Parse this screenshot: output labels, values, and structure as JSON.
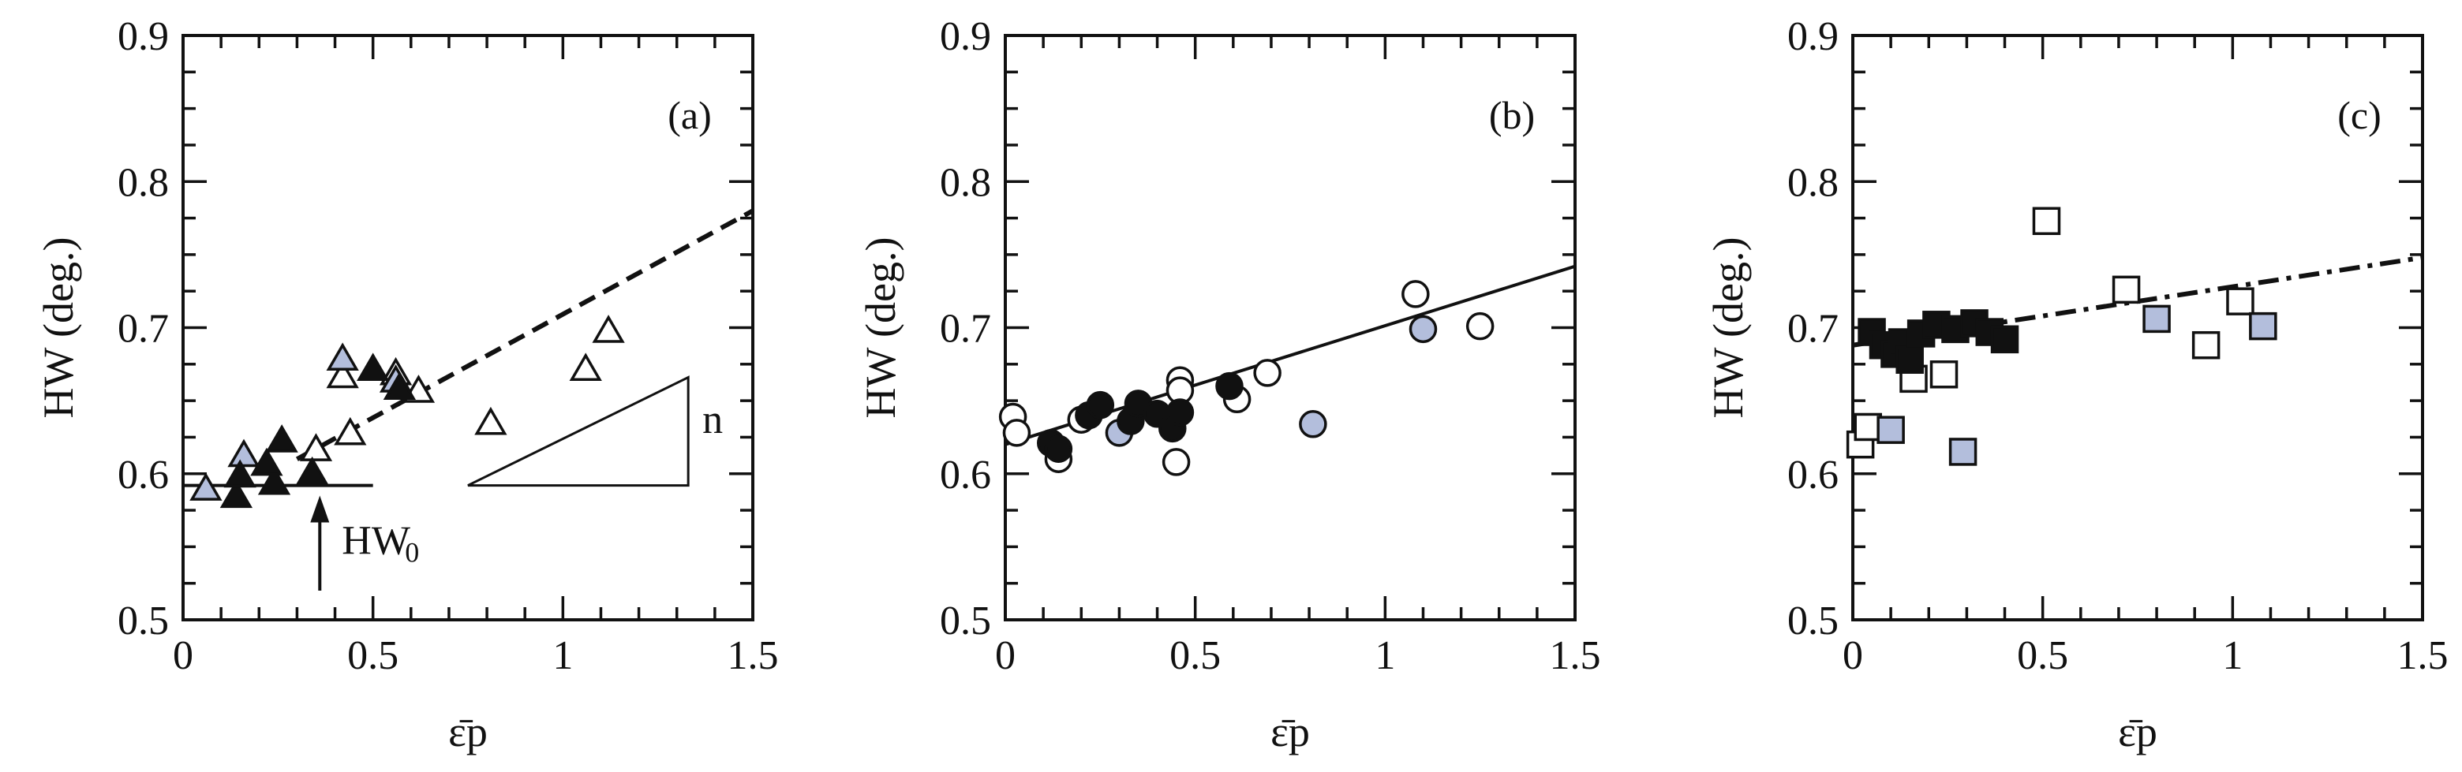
{
  "colors": {
    "ink": "#111111",
    "open_fill": "#ffffff",
    "gray_fill": "#b3bedc",
    "black_fill": "#111111"
  },
  "chart_data": [
    {
      "panel": "a",
      "panel_label": "(a)",
      "type": "scatter",
      "xlabel": "ε̄p",
      "ylabel": "HW (deg.)",
      "xlim": [
        0,
        1.5
      ],
      "ylim": [
        0.5,
        0.9
      ],
      "x_ticks": [
        "0",
        "0.5",
        "1",
        "1.5"
      ],
      "y_ticks": [
        "0.5",
        "0.6",
        "0.7",
        "0.8",
        "0.9"
      ],
      "marker": "triangle",
      "grid": false,
      "series": [
        {
          "style": "open",
          "points": [
            [
              0.35,
              0.616
            ],
            [
              0.42,
              0.666
            ],
            [
              0.44,
              0.627
            ],
            [
              0.56,
              0.668
            ],
            [
              0.62,
              0.656
            ],
            [
              0.81,
              0.634
            ],
            [
              1.06,
              0.671
            ],
            [
              1.12,
              0.697
            ]
          ]
        },
        {
          "style": "gray",
          "points": [
            [
              0.06,
              0.589
            ],
            [
              0.16,
              0.612
            ],
            [
              0.42,
              0.678
            ],
            [
              0.56,
              0.663
            ]
          ]
        },
        {
          "style": "black",
          "points": [
            [
              0.14,
              0.584
            ],
            [
              0.15,
              0.598
            ],
            [
              0.24,
              0.593
            ],
            [
              0.26,
              0.622
            ],
            [
              0.22,
              0.606
            ],
            [
              0.5,
              0.671
            ],
            [
              0.57,
              0.658
            ],
            [
              0.34,
              0.6
            ]
          ]
        }
      ],
      "fits": [
        {
          "style": "solid",
          "points": [
            [
              0.0,
              0.592
            ],
            [
              0.5,
              0.592
            ]
          ]
        },
        {
          "style": "dashed",
          "points": [
            [
              0.3,
              0.61
            ],
            [
              1.5,
              0.78
            ]
          ]
        }
      ],
      "annotations": {
        "hw0_label": "HW",
        "hw0_sub": "0",
        "hw0_arrow": {
          "x": 0.36,
          "y_from": 0.52,
          "y_to": 0.585
        },
        "slope_label": "n",
        "slope_triangle": [
          [
            0.75,
            0.592
          ],
          [
            1.33,
            0.592
          ],
          [
            1.33,
            0.666
          ]
        ]
      }
    },
    {
      "panel": "b",
      "panel_label": "(b)",
      "type": "scatter",
      "xlabel": "ε̄p",
      "ylabel": "HW (deg.)",
      "xlim": [
        0,
        1.5
      ],
      "ylim": [
        0.5,
        0.9
      ],
      "x_ticks": [
        "0",
        "0.5",
        "1",
        "1.5"
      ],
      "y_ticks": [
        "0.5",
        "0.6",
        "0.7",
        "0.8",
        "0.9"
      ],
      "marker": "circle",
      "grid": false,
      "series": [
        {
          "style": "open",
          "points": [
            [
              0.02,
              0.639
            ],
            [
              0.03,
              0.628
            ],
            [
              0.14,
              0.61
            ],
            [
              0.45,
              0.608
            ],
            [
              0.46,
              0.664
            ],
            [
              0.46,
              0.657
            ],
            [
              0.61,
              0.651
            ],
            [
              0.69,
              0.669
            ],
            [
              1.08,
              0.723
            ],
            [
              1.25,
              0.701
            ],
            [
              0.2,
              0.637
            ]
          ]
        },
        {
          "style": "gray",
          "points": [
            [
              0.3,
              0.628
            ],
            [
              0.81,
              0.634
            ],
            [
              1.1,
              0.699
            ]
          ]
        },
        {
          "style": "black",
          "points": [
            [
              0.12,
              0.621
            ],
            [
              0.14,
              0.617
            ],
            [
              0.22,
              0.64
            ],
            [
              0.25,
              0.647
            ],
            [
              0.33,
              0.636
            ],
            [
              0.35,
              0.648
            ],
            [
              0.4,
              0.641
            ],
            [
              0.44,
              0.631
            ],
            [
              0.46,
              0.642
            ],
            [
              0.59,
              0.66
            ]
          ]
        }
      ],
      "fits": [
        {
          "style": "solid",
          "points": [
            [
              0.0,
              0.62
            ],
            [
              1.5,
              0.742
            ]
          ]
        }
      ]
    },
    {
      "panel": "c",
      "panel_label": "(c)",
      "type": "scatter",
      "xlabel": "ε̄p",
      "ylabel": "HW (deg.)",
      "xlim": [
        0,
        1.5
      ],
      "ylim": [
        0.5,
        0.9
      ],
      "x_ticks": [
        "0",
        "0.5",
        "1",
        "1.5"
      ],
      "y_ticks": [
        "0.5",
        "0.6",
        "0.7",
        "0.8",
        "0.9"
      ],
      "marker": "square",
      "grid": false,
      "series": [
        {
          "style": "open",
          "points": [
            [
              0.02,
              0.62
            ],
            [
              0.04,
              0.632
            ],
            [
              0.16,
              0.665
            ],
            [
              0.24,
              0.668
            ],
            [
              0.51,
              0.773
            ],
            [
              0.72,
              0.726
            ],
            [
              0.93,
              0.688
            ],
            [
              1.02,
              0.718
            ]
          ]
        },
        {
          "style": "gray",
          "points": [
            [
              0.1,
              0.63
            ],
            [
              0.29,
              0.615
            ],
            [
              0.8,
              0.706
            ],
            [
              1.08,
              0.701
            ]
          ]
        },
        {
          "style": "black",
          "points": [
            [
              0.05,
              0.697
            ],
            [
              0.08,
              0.688
            ],
            [
              0.11,
              0.682
            ],
            [
              0.13,
              0.69
            ],
            [
              0.15,
              0.678
            ],
            [
              0.18,
              0.696
            ],
            [
              0.22,
              0.702
            ],
            [
              0.27,
              0.699
            ],
            [
              0.32,
              0.703
            ],
            [
              0.36,
              0.697
            ],
            [
              0.4,
              0.692
            ]
          ]
        }
      ],
      "fits": [
        {
          "style": "dashdot",
          "points": [
            [
              0.0,
              0.688
            ],
            [
              1.5,
              0.748
            ]
          ]
        }
      ]
    }
  ]
}
